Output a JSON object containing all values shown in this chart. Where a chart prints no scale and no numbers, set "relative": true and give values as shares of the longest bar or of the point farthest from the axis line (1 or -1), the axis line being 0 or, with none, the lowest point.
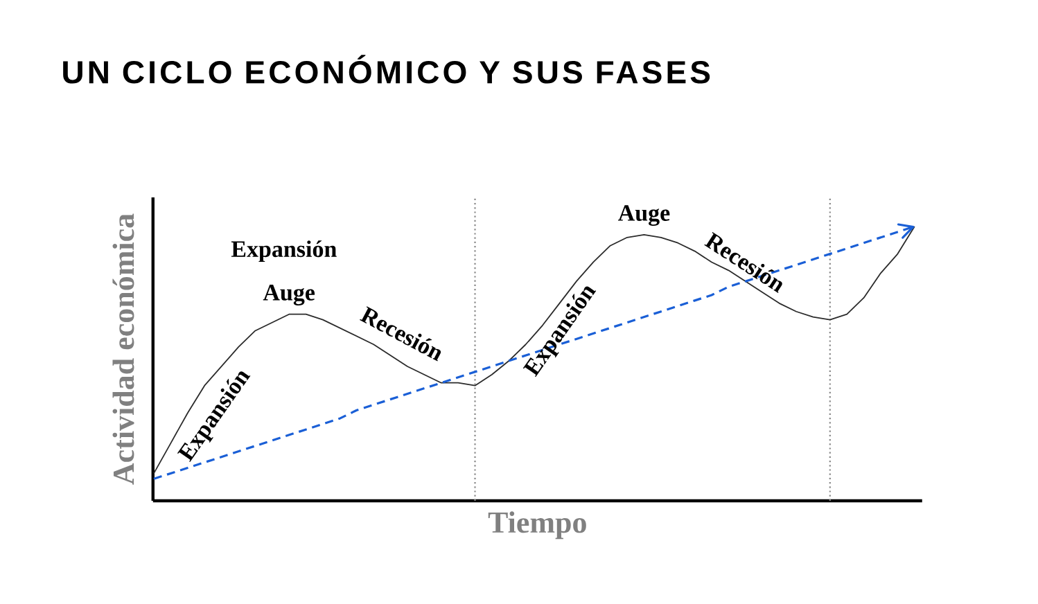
{
  "chart_data": {
    "type": "line",
    "title": "UN CICLO ECONÓMICO Y SUS FASES",
    "xlabel": "Tiempo",
    "ylabel": "Actividad económica",
    "relative": true,
    "legend": false,
    "categories": [
      null,
      null,
      null,
      null,
      null,
      null,
      null,
      null,
      null,
      null,
      null,
      null,
      null,
      null,
      null,
      null,
      null,
      null,
      null,
      null,
      null,
      null,
      null,
      null,
      null,
      null,
      null,
      null,
      null,
      null,
      null,
      null,
      null,
      null,
      null,
      null,
      null,
      null,
      null,
      null,
      null,
      null,
      null,
      null,
      null,
      null
    ],
    "series": [
      {
        "color": "#2b2b2b",
        "line_style": "solid",
        "values": [
          0.1,
          0.21,
          0.32,
          0.42,
          0.49,
          0.56,
          0.62,
          0.65,
          0.68,
          0.68,
          0.66,
          0.63,
          0.6,
          0.57,
          0.53,
          0.49,
          0.46,
          0.43,
          0.43,
          0.42,
          0.46,
          0.51,
          0.57,
          0.64,
          0.72,
          0.8,
          0.87,
          0.93,
          0.96,
          0.97,
          0.96,
          0.94,
          0.91,
          0.87,
          0.84,
          0.8,
          0.76,
          0.72,
          0.69,
          0.67,
          0.66,
          0.68,
          0.74,
          0.83,
          0.9,
          1.0
        ]
      },
      {
        "color": "#1a5fd6",
        "line_style": "dashed",
        "values": [
          0.08,
          0.1,
          0.12,
          0.14,
          0.16,
          0.18,
          0.2,
          0.22,
          0.24,
          0.26,
          0.28,
          0.3,
          0.33,
          0.35,
          0.37,
          0.39,
          0.41,
          0.43,
          0.45,
          0.47,
          0.49,
          0.51,
          0.53,
          0.55,
          0.57,
          0.59,
          0.61,
          0.63,
          0.65,
          0.67,
          0.69,
          0.71,
          0.73,
          0.75,
          0.78,
          0.8,
          0.82,
          0.84,
          0.86,
          0.88,
          0.9,
          0.92,
          0.94,
          0.96,
          0.98,
          1.0
        ]
      }
    ],
    "annotations": [
      "Expansión",
      "Auge",
      "Recesión",
      "Expansión",
      "Auge",
      "Recesión",
      "Expansión"
    ]
  }
}
